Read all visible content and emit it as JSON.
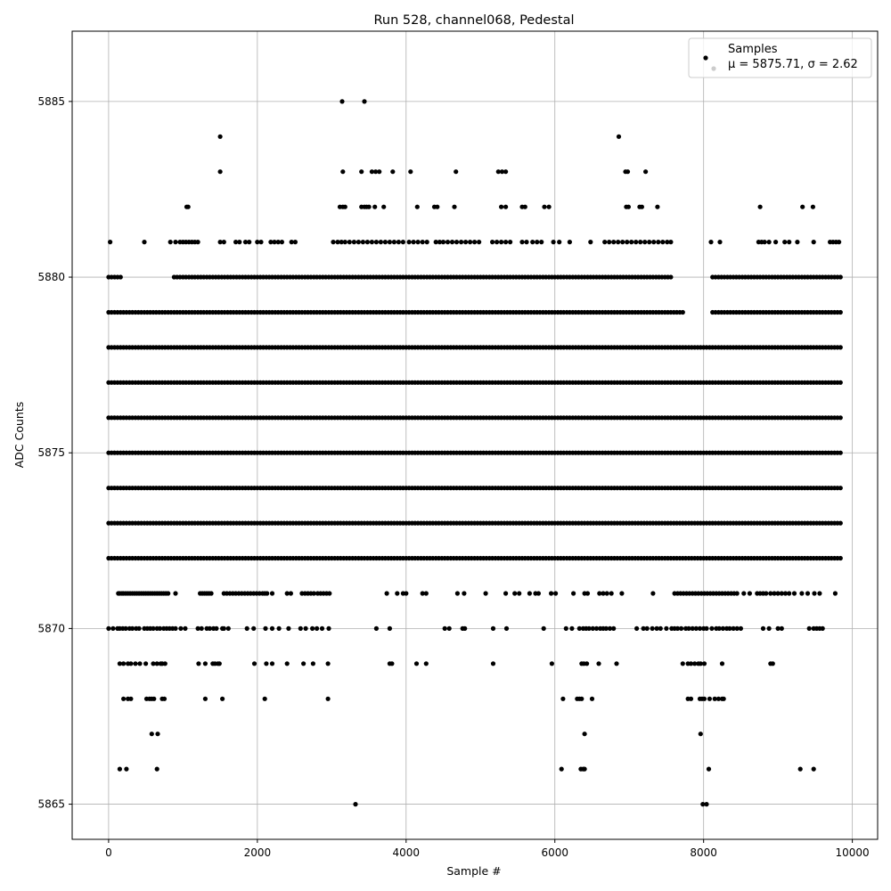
{
  "chart_data": {
    "type": "scatter",
    "title": "Run 528, channel068, Pedestal",
    "xlabel": "Sample #",
    "ylabel": "ADC Counts",
    "xlim": [
      -490,
      10340
    ],
    "ylim": [
      5864,
      5887
    ],
    "xticks": [
      0,
      2000,
      4000,
      6000,
      8000,
      10000
    ],
    "yticks": [
      5865,
      5870,
      5875,
      5880,
      5885
    ],
    "grid": true,
    "legend": {
      "placement": "top-right",
      "entries": [
        "Samples",
        "μ = 5875.71, σ = 2.62"
      ]
    },
    "marker_color": "#000000",
    "series": [
      {
        "name": "Samples",
        "bands": [
          {
            "y": 5866,
            "x": [
              150,
              240,
              650,
              6090,
              6350,
              6380,
              6400,
              8070,
              9300,
              9480
            ]
          },
          {
            "y": 5867,
            "x": [
              580,
              660,
              6400,
              7960
            ]
          },
          {
            "y": 5868,
            "x": [
              200,
              260,
              300,
              510,
              550,
              580,
              610,
              720,
              750,
              1300,
              1530,
              2100,
              2950,
              6110,
              6300,
              6330,
              6360,
              6500,
              7790,
              7830,
              7950,
              7980,
              8010,
              8080,
              8150,
              8200,
              8250,
              8270
            ]
          },
          {
            "y": 5869,
            "x": [
              150,
              200,
              260,
              300,
              360,
              420,
              500,
              600,
              650,
              700,
              720,
              760,
              1210,
              1300,
              1400,
              1430,
              1470,
              1490,
              1960,
              2120,
              2200,
              2400,
              2620,
              2750,
              2950,
              3780,
              3810,
              4140,
              4270,
              5170,
              5960,
              6360,
              6390,
              6430,
              6590,
              6830,
              7720,
              7790,
              7830,
              7880,
              7930,
              7960,
              8010,
              8250,
              8900,
              8930
            ]
          },
          {
            "y": 5871,
            "x": [
              130,
              150,
              180,
              200,
              230,
              260,
              290,
              320,
              350,
              380,
              410,
              440,
              470,
              500,
              530,
              560,
              590,
              620,
              650,
              680,
              710,
              740,
              770,
              800,
              900,
              1230,
              1260,
              1290,
              1320,
              1350,
              1380,
              1550,
              1590,
              1630,
              1670,
              1710,
              1750,
              1790,
              1830,
              1870,
              1910,
              1950,
              1990,
              2030,
              2070,
              2100,
              2130,
              2200,
              2400,
              2450,
              2600,
              2640,
              2680,
              2720,
              2760,
              2810,
              2850,
              2890,
              2930,
              2970,
              3740,
              3880,
              3960,
              4000,
              4220,
              4270,
              4690,
              4780,
              5070,
              5340,
              5460,
              5520,
              5660,
              5740,
              5780,
              5950,
              6010,
              6250,
              6400,
              6440,
              6600,
              6650,
              6700,
              6760,
              6900,
              7320,
              7610,
              7650,
              7690,
              7730,
              7770,
              7810,
              7850,
              7890,
              7930,
              7970,
              8010,
              8050,
              8090,
              8130,
              8170,
              8210,
              8250,
              8290,
              8330,
              8370,
              8410,
              8450,
              8540,
              8620,
              8720,
              8760,
              8800,
              8840,
              8900,
              8950,
              9000,
              9050,
              9100,
              9150,
              9220,
              9320,
              9400,
              9490,
              9560,
              9770
            ]
          },
          {
            "y": 5870,
            "x": [
              0,
              60,
              120,
              150,
              190,
              230,
              280,
              320,
              370,
              410,
              480,
              520,
              560,
              600,
              650,
              690,
              740,
              780,
              820,
              860,
              900,
              970,
              1030,
              1200,
              1250,
              1320,
              1360,
              1410,
              1450,
              1530,
              1550,
              1610,
              1860,
              1950,
              2110,
              2200,
              2290,
              2420,
              2580,
              2650,
              2740,
              2800,
              2870,
              2960,
              3600,
              3780,
              4520,
              4580,
              4760,
              4790,
              5170,
              5350,
              5850,
              6150,
              6230,
              6330,
              6380,
              6420,
              6460,
              6510,
              6560,
              6610,
              6650,
              6690,
              6740,
              6790,
              7100,
              7190,
              7240,
              7310,
              7370,
              7420,
              7500,
              7570,
              7610,
              7650,
              7700,
              7760,
              7800,
              7850,
              7900,
              7950,
              8000,
              8040,
              8110,
              8170,
              8210,
              8260,
              8310,
              8350,
              8400,
              8450,
              8500,
              8800,
              8880,
              9000,
              9050,
              9420,
              9480,
              9520,
              9560,
              9600
            ]
          },
          {
            "y": 5881,
            "x": [
              20,
              480,
              830,
              900,
              960,
              1000,
              1040,
              1080,
              1120,
              1160,
              1200,
              1500,
              1550,
              1710,
              1760,
              1840,
              1890,
              2000,
              2050,
              2180,
              2230,
              2280,
              2330,
              2460,
              2510,
              3020,
              3080,
              3130,
              3180,
              3240,
              3300,
              3360,
              3420,
              3480,
              3540,
              3600,
              3660,
              3720,
              3780,
              3840,
              3900,
              3960,
              4040,
              4100,
              4160,
              4220,
              4280,
              4400,
              4450,
              4500,
              4560,
              4620,
              4680,
              4740,
              4800,
              4860,
              4920,
              4980,
              5160,
              5220,
              5280,
              5340,
              5400,
              5560,
              5620,
              5700,
              5760,
              5820,
              5980,
              6060,
              6200,
              6480,
              6670,
              6730,
              6790,
              6850,
              6910,
              6970,
              7030,
              7090,
              7150,
              7210,
              7270,
              7330,
              7390,
              7450,
              7510,
              7560,
              8100,
              8220,
              8740,
              8780,
              8820,
              8880,
              8970,
              9090,
              9150,
              9260,
              9480,
              9700,
              9740,
              9780,
              9820
            ]
          },
          {
            "y": 5882,
            "x": [
              1050,
              1070,
              3110,
              3150,
              3180,
              3400,
              3440,
              3470,
              3500,
              3580,
              3700,
              4150,
              4380,
              4420,
              4650,
              5280,
              5340,
              5560,
              5600,
              5860,
              5920,
              6960,
              6990,
              7140,
              7170,
              7380,
              8760,
              9330,
              9470
            ]
          },
          {
            "y": 5883,
            "x": [
              1500,
              3150,
              3400,
              3540,
              3590,
              3640,
              3820,
              4060,
              4670,
              5240,
              5290,
              5340,
              6950,
              6980,
              7220
            ]
          },
          {
            "y": 5884,
            "x": [
              1500,
              6860
            ]
          },
          {
            "y": 5885,
            "x": [
              3140,
              3440
            ]
          },
          {
            "y": 5865,
            "x": [
              3320,
              7990,
              8040
            ]
          }
        ],
        "dense_bands": [
          {
            "y": 5879,
            "x_range": [
              0,
              9840
            ],
            "gaps": [
              [
                7750,
                8090
              ]
            ]
          },
          {
            "y": 5880,
            "x_range": [
              0,
              9840
            ],
            "gaps": [
              [
                200,
                870
              ],
              [
                7580,
                8110
              ]
            ]
          },
          {
            "y": 5878,
            "x_range": [
              0,
              9840
            ],
            "gaps": []
          },
          {
            "y": 5877,
            "x_range": [
              0,
              9840
            ],
            "gaps": []
          },
          {
            "y": 5876,
            "x_range": [
              0,
              9840
            ],
            "gaps": []
          },
          {
            "y": 5875,
            "x_range": [
              0,
              9840
            ],
            "gaps": []
          },
          {
            "y": 5874,
            "x_range": [
              0,
              9840
            ],
            "gaps": []
          },
          {
            "y": 5873,
            "x_range": [
              0,
              9840
            ],
            "gaps": []
          },
          {
            "y": 5872,
            "x_range": [
              0,
              9840
            ],
            "gaps": []
          }
        ]
      }
    ],
    "stats": {
      "mu": "5875.71",
      "sigma": "2.62"
    }
  }
}
